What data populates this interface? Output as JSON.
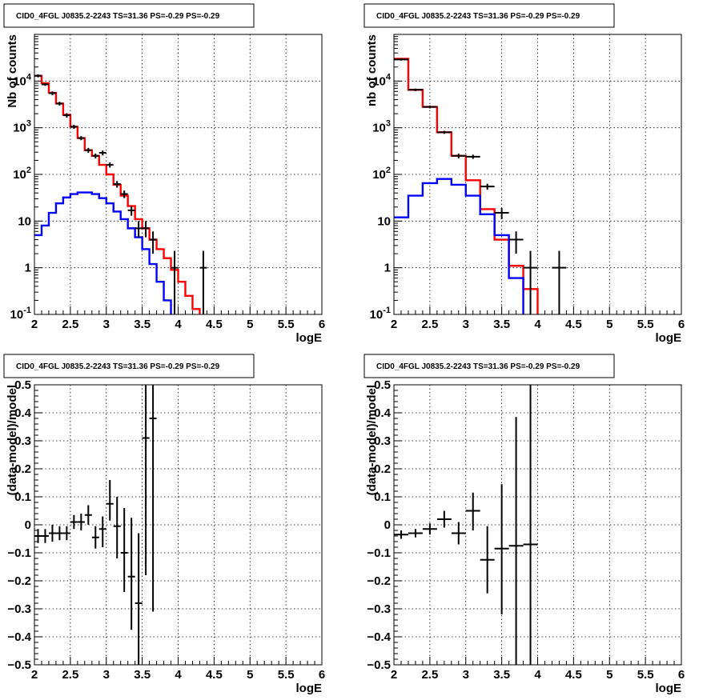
{
  "chart_data": [
    {
      "type": "step-histogram",
      "title": "CID0_4FGL J0835.2-2243 TS=31.36 PS=-0.29 PS=-0.29",
      "xlabel": "logE",
      "ylabel": "Nb of counts",
      "xlim": [
        2,
        6
      ],
      "ylim": [
        0.1,
        100000
      ],
      "yscale": "log",
      "xticks": [
        "2",
        "2.5",
        "3",
        "3.5",
        "4",
        "4.5",
        "5",
        "5.5",
        "6"
      ],
      "yticks": [
        {
          "v": 0.1,
          "base": "10",
          "exp": "-1",
          "plain": ""
        },
        {
          "v": 1,
          "base": "",
          "exp": "",
          "plain": "1"
        },
        {
          "v": 10,
          "base": "",
          "exp": "",
          "plain": "10"
        },
        {
          "v": 100,
          "base": "10",
          "exp": "2",
          "plain": ""
        },
        {
          "v": 1000,
          "base": "10",
          "exp": "3",
          "plain": ""
        },
        {
          "v": 10000,
          "base": "10",
          "exp": "4",
          "plain": ""
        }
      ],
      "grid": true,
      "bin_edges": [
        2.0,
        2.1,
        2.2,
        2.3,
        2.4,
        2.5,
        2.6,
        2.7,
        2.8,
        2.9,
        3.0,
        3.1,
        3.2,
        3.3,
        3.4,
        3.5,
        3.6,
        3.7,
        3.8,
        3.9,
        4.0,
        4.1,
        4.2,
        4.3,
        4.4,
        4.5,
        4.6,
        4.7,
        4.8,
        4.9,
        5.0,
        5.1,
        5.2,
        5.3,
        5.4,
        5.5,
        5.6,
        5.7,
        5.8,
        5.9,
        6.0
      ],
      "series": [
        {
          "color": "#ff0000",
          "kind": "step",
          "values": [
            13000,
            9000,
            5600,
            3300,
            1900,
            1050,
            600,
            330,
            250,
            160,
            100,
            60,
            35,
            21,
            11,
            7,
            4,
            2.5,
            1.6,
            0.9,
            0.5,
            0.25,
            0.13,
            0.09,
            0.08,
            0.07,
            0.07,
            0.07,
            0.07,
            0.07,
            0.07,
            0.07,
            0.07,
            0.07,
            0.07,
            0.07,
            0.07,
            0.07,
            0.07,
            0.07
          ]
        },
        {
          "color": "#0000ff",
          "kind": "step",
          "values": [
            5,
            8,
            15,
            24,
            32,
            38,
            41,
            41,
            38,
            31,
            24,
            16,
            11,
            7,
            4.5,
            2.5,
            1.2,
            0.5,
            0.2,
            0.07,
            0.07,
            0.07,
            0.07,
            0.07,
            0.07,
            0.07,
            0.07,
            0.07,
            0.07,
            0.07,
            0.07,
            0.07,
            0.07,
            0.07,
            0.07,
            0.07,
            0.07,
            0.07,
            0.07,
            0.07
          ]
        },
        {
          "color": "#000000",
          "kind": "errorbar",
          "points": [
            {
              "x": 2.05,
              "y": 13000,
              "lo": 12000,
              "hi": 14000
            },
            {
              "x": 2.15,
              "y": 8500,
              "lo": 7900,
              "hi": 9100
            },
            {
              "x": 2.25,
              "y": 5500,
              "lo": 5000,
              "hi": 6000
            },
            {
              "x": 2.35,
              "y": 3300,
              "lo": 3000,
              "hi": 3600
            },
            {
              "x": 2.45,
              "y": 1850,
              "lo": 1650,
              "hi": 2050
            },
            {
              "x": 2.55,
              "y": 1050,
              "lo": 950,
              "hi": 1150
            },
            {
              "x": 2.65,
              "y": 600,
              "lo": 540,
              "hi": 660
            },
            {
              "x": 2.75,
              "y": 330,
              "lo": 290,
              "hi": 370
            },
            {
              "x": 2.85,
              "y": 250,
              "lo": 220,
              "hi": 280
            },
            {
              "x": 2.95,
              "y": 290,
              "lo": 255,
              "hi": 325
            },
            {
              "x": 3.05,
              "y": 160,
              "lo": 140,
              "hi": 180
            },
            {
              "x": 3.15,
              "y": 62,
              "lo": 52,
              "hi": 72
            },
            {
              "x": 3.25,
              "y": 38,
              "lo": 31,
              "hi": 45
            },
            {
              "x": 3.35,
              "y": 17,
              "lo": 13,
              "hi": 21
            },
            {
              "x": 3.45,
              "y": 7,
              "lo": 4.5,
              "hi": 10
            },
            {
              "x": 3.55,
              "y": 7,
              "lo": 4.5,
              "hi": 10
            },
            {
              "x": 3.65,
              "y": 4,
              "lo": 2,
              "hi": 6
            },
            {
              "x": 3.95,
              "y": 1,
              "lo": 0.1,
              "hi": 2.3
            },
            {
              "x": 4.35,
              "y": 1,
              "lo": 0.1,
              "hi": 2.3
            }
          ]
        }
      ]
    },
    {
      "type": "step-histogram",
      "title": "CID0_4FGL J0835.2-2243 TS=31.36 PS=-0.29 PS=-0.29",
      "xlabel": "logE",
      "ylabel": "nb of counts",
      "xlim": [
        2,
        6
      ],
      "ylim": [
        0.1,
        100000
      ],
      "yscale": "log",
      "xticks": [
        "2",
        "2.5",
        "3",
        "3.5",
        "4",
        "4.5",
        "5",
        "5.5",
        "6"
      ],
      "yticks": [
        {
          "v": 0.1,
          "base": "10",
          "exp": "-1",
          "plain": ""
        },
        {
          "v": 1,
          "base": "",
          "exp": "",
          "plain": "1"
        },
        {
          "v": 10,
          "base": "",
          "exp": "",
          "plain": "10"
        },
        {
          "v": 100,
          "base": "10",
          "exp": "2",
          "plain": ""
        },
        {
          "v": 1000,
          "base": "10",
          "exp": "3",
          "plain": ""
        },
        {
          "v": 10000,
          "base": "10",
          "exp": "4",
          "plain": ""
        }
      ],
      "grid": true,
      "bin_edges": [
        2.0,
        2.2,
        2.4,
        2.6,
        2.8,
        3.0,
        3.2,
        3.4,
        3.6,
        3.8,
        4.0,
        4.2,
        4.4,
        4.6,
        4.8,
        5.0,
        5.2,
        5.4,
        5.6,
        5.8,
        6.0
      ],
      "series": [
        {
          "color": "#ff0000",
          "kind": "step",
          "values": [
            30000,
            6500,
            2800,
            800,
            250,
            75,
            18,
            4,
            1.1,
            0.35,
            0.07,
            0.07,
            0.07,
            0.07,
            0.07,
            0.07,
            0.07,
            0.07,
            0.07,
            0.07
          ]
        },
        {
          "color": "#0000ff",
          "kind": "step",
          "values": [
            12,
            35,
            65,
            80,
            60,
            35,
            14,
            5,
            0.6,
            0.07,
            0.07,
            0.07,
            0.07,
            0.07,
            0.07,
            0.07,
            0.07,
            0.07,
            0.07,
            0.07
          ]
        },
        {
          "color": "#000000",
          "kind": "errorbar",
          "points": [
            {
              "x": 2.1,
              "y": 29000,
              "lo": 27500,
              "hi": 30500
            },
            {
              "x": 2.3,
              "y": 6500,
              "lo": 6100,
              "hi": 6900
            },
            {
              "x": 2.5,
              "y": 2800,
              "lo": 2600,
              "hi": 3000
            },
            {
              "x": 2.7,
              "y": 800,
              "lo": 740,
              "hi": 860
            },
            {
              "x": 2.9,
              "y": 250,
              "lo": 220,
              "hi": 280
            },
            {
              "x": 3.1,
              "y": 240,
              "lo": 215,
              "hi": 265
            },
            {
              "x": 3.3,
              "y": 55,
              "lo": 47,
              "hi": 63
            },
            {
              "x": 3.5,
              "y": 15,
              "lo": 11,
              "hi": 19
            },
            {
              "x": 3.7,
              "y": 4,
              "lo": 2,
              "hi": 6
            },
            {
              "x": 3.9,
              "y": 1,
              "lo": 0.1,
              "hi": 2.3
            },
            {
              "x": 4.3,
              "y": 1,
              "lo": 0.1,
              "hi": 2.3
            }
          ]
        }
      ]
    },
    {
      "type": "scatter-errorbar",
      "title": "CID0_4FGL J0835.2-2243 TS=31.36 PS=-0.29 PS=-0.29",
      "xlabel": "logE",
      "ylabel": "(data-model)/model",
      "xlim": [
        2,
        6
      ],
      "ylim": [
        -0.5,
        0.5
      ],
      "yscale": "linear",
      "xticks": [
        "2",
        "2.5",
        "3",
        "3.5",
        "4",
        "4.5",
        "5",
        "5.5",
        "6"
      ],
      "yticks": [
        {
          "v": -0.5,
          "plain": "−0.5"
        },
        {
          "v": -0.4,
          "plain": "−0.4"
        },
        {
          "v": -0.3,
          "plain": "−0.3"
        },
        {
          "v": -0.2,
          "plain": "−0.2"
        },
        {
          "v": -0.1,
          "plain": "−0.1"
        },
        {
          "v": 0,
          "plain": "0"
        },
        {
          "v": 0.1,
          "plain": "0.1"
        },
        {
          "v": 0.2,
          "plain": "0.2"
        },
        {
          "v": 0.3,
          "plain": "0.3"
        },
        {
          "v": 0.4,
          "plain": "0.4"
        },
        {
          "v": 0.5,
          "plain": "0.5"
        }
      ],
      "grid": true,
      "xhalf": 0.05,
      "points": [
        {
          "x": 2.05,
          "y": -0.04,
          "lo": -0.065,
          "hi": -0.015
        },
        {
          "x": 2.15,
          "y": -0.04,
          "lo": -0.065,
          "hi": -0.015
        },
        {
          "x": 2.25,
          "y": -0.03,
          "lo": -0.06,
          "hi": 0.0
        },
        {
          "x": 2.35,
          "y": -0.03,
          "lo": -0.055,
          "hi": -0.005
        },
        {
          "x": 2.45,
          "y": -0.03,
          "lo": -0.055,
          "hi": -0.005
        },
        {
          "x": 2.55,
          "y": 0.01,
          "lo": -0.015,
          "hi": 0.035
        },
        {
          "x": 2.65,
          "y": 0.01,
          "lo": -0.02,
          "hi": 0.04
        },
        {
          "x": 2.75,
          "y": 0.035,
          "lo": 0.0,
          "hi": 0.07
        },
        {
          "x": 2.85,
          "y": -0.045,
          "lo": -0.085,
          "hi": -0.005
        },
        {
          "x": 2.95,
          "y": -0.015,
          "lo": -0.08,
          "hi": 0.03
        },
        {
          "x": 3.05,
          "y": 0.075,
          "lo": 0.015,
          "hi": 0.16
        },
        {
          "x": 3.15,
          "y": -0.005,
          "lo": -0.12,
          "hi": 0.1
        },
        {
          "x": 3.25,
          "y": -0.1,
          "lo": -0.24,
          "hi": 0.06
        },
        {
          "x": 3.35,
          "y": -0.185,
          "lo": -0.375,
          "hi": 0.025
        },
        {
          "x": 3.45,
          "y": -0.28,
          "lo": -0.5,
          "hi": -0.03
        },
        {
          "x": 3.55,
          "y": 0.31,
          "lo": -0.18,
          "hi": 0.5
        },
        {
          "x": 3.65,
          "y": 0.38,
          "lo": -0.31,
          "hi": 0.5
        }
      ]
    },
    {
      "type": "scatter-errorbar",
      "title": "CID0_4FGL J0835.2-2243 TS=31.36 PS=-0.29 PS=-0.29",
      "xlabel": "logE",
      "ylabel": "(data-model)/model",
      "xlim": [
        2,
        6
      ],
      "ylim": [
        -0.5,
        0.5
      ],
      "yscale": "linear",
      "xticks": [
        "2",
        "2.5",
        "3",
        "3.5",
        "4",
        "4.5",
        "5",
        "5.5",
        "6"
      ],
      "yticks": [
        {
          "v": -0.5,
          "plain": "−0.5"
        },
        {
          "v": -0.4,
          "plain": "−0.4"
        },
        {
          "v": -0.3,
          "plain": "−0.3"
        },
        {
          "v": -0.2,
          "plain": "−0.2"
        },
        {
          "v": -0.1,
          "plain": "−0.1"
        },
        {
          "v": 0,
          "plain": "0"
        },
        {
          "v": 0.1,
          "plain": "0.1"
        },
        {
          "v": 0.2,
          "plain": "0.2"
        },
        {
          "v": 0.3,
          "plain": "0.3"
        },
        {
          "v": 0.4,
          "plain": "0.4"
        },
        {
          "v": 0.5,
          "plain": "0.5"
        }
      ],
      "grid": true,
      "xhalf": 0.1,
      "points": [
        {
          "x": 2.1,
          "y": -0.035,
          "lo": -0.05,
          "hi": -0.02
        },
        {
          "x": 2.3,
          "y": -0.03,
          "lo": -0.045,
          "hi": -0.015
        },
        {
          "x": 2.5,
          "y": -0.015,
          "lo": -0.035,
          "hi": 0.005
        },
        {
          "x": 2.7,
          "y": 0.02,
          "lo": -0.01,
          "hi": 0.05
        },
        {
          "x": 2.9,
          "y": -0.03,
          "lo": -0.07,
          "hi": 0.01
        },
        {
          "x": 3.1,
          "y": 0.05,
          "lo": -0.02,
          "hi": 0.115
        },
        {
          "x": 3.3,
          "y": -0.125,
          "lo": -0.245,
          "hi": -0.005
        },
        {
          "x": 3.5,
          "y": -0.085,
          "lo": -0.32,
          "hi": 0.145
        },
        {
          "x": 3.7,
          "y": -0.075,
          "lo": -0.5,
          "hi": 0.385
        },
        {
          "x": 3.9,
          "y": -0.07,
          "lo": -0.5,
          "hi": 0.5
        }
      ]
    }
  ]
}
